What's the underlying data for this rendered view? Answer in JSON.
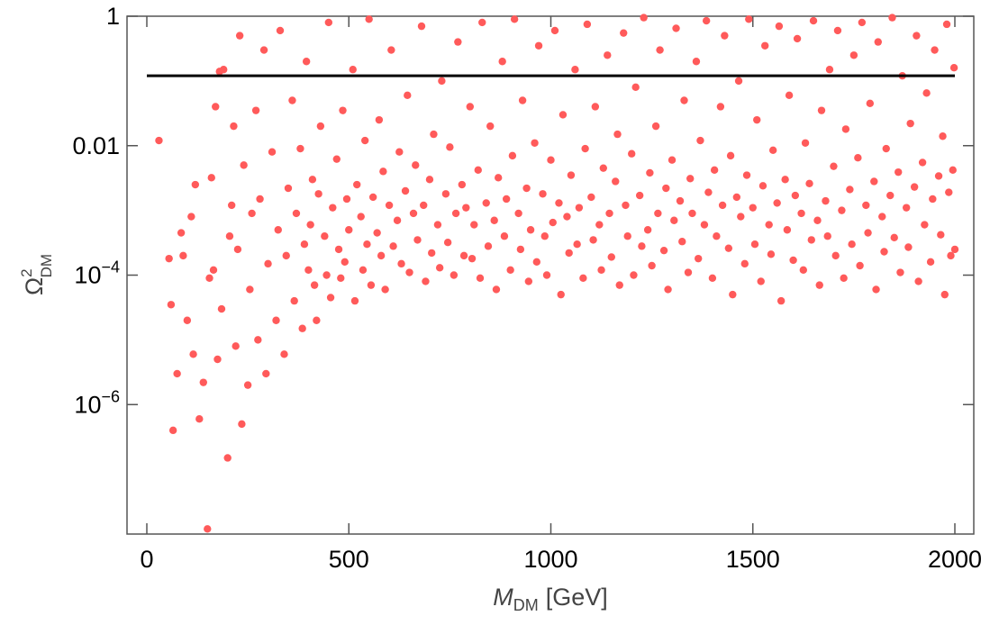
{
  "chart_data": {
    "type": "scatter",
    "xlabel": {
      "symbol": "M",
      "subscript": "DM",
      "unit": "[GeV]"
    },
    "ylabel": {
      "symbol": "Ω",
      "superscript": "2",
      "subscript": "DM"
    },
    "xlim": [
      0,
      2000
    ],
    "ylim": [
      1e-08,
      1
    ],
    "y_scale": "log",
    "x_ticks": [
      {
        "value": 0,
        "label": "0"
      },
      {
        "value": 500,
        "label": "500"
      },
      {
        "value": 1000,
        "label": "1000"
      },
      {
        "value": 1500,
        "label": "1500"
      },
      {
        "value": 2000,
        "label": "2000"
      }
    ],
    "y_ticks": [
      {
        "value": 1,
        "label": "1",
        "exp": ""
      },
      {
        "value": 0.01,
        "label": "0.01",
        "exp": ""
      },
      {
        "value": 0.0001,
        "label": "10",
        "exp": "−4"
      },
      {
        "value": 1e-06,
        "label": "10",
        "exp": "−6"
      }
    ],
    "reference_line": {
      "y": 0.12,
      "x": [
        0,
        2000
      ],
      "color": "#000000"
    },
    "marker_color": "#ff5a5a",
    "series": [
      {
        "points": [
          [
            30,
            0.012
          ],
          [
            55,
            0.00018
          ],
          [
            60,
            3.5e-05
          ],
          [
            65,
            4e-07
          ],
          [
            75,
            3e-06
          ],
          [
            85,
            0.00045
          ],
          [
            90,
            0.0002
          ],
          [
            100,
            2e-05
          ],
          [
            110,
            0.0008
          ],
          [
            115,
            6e-06
          ],
          [
            120,
            0.0025
          ],
          [
            130,
            6e-07
          ],
          [
            140,
            2.2e-06
          ],
          [
            150,
            1.2e-08
          ],
          [
            155,
            9e-05
          ],
          [
            160,
            0.0032
          ],
          [
            165,
            0.00012
          ],
          [
            170,
            0.04
          ],
          [
            175,
            5e-06
          ],
          [
            180,
            0.14
          ],
          [
            185,
            3e-05
          ],
          [
            190,
            0.15
          ],
          [
            200,
            1.5e-07
          ],
          [
            205,
            0.0004
          ],
          [
            210,
            0.0012
          ],
          [
            215,
            0.02
          ],
          [
            220,
            8e-06
          ],
          [
            225,
            0.00025
          ],
          [
            230,
            0.5
          ],
          [
            235,
            5e-07
          ],
          [
            240,
            0.005
          ],
          [
            250,
            2e-06
          ],
          [
            255,
            6e-05
          ],
          [
            260,
            0.0009
          ],
          [
            270,
            0.035
          ],
          [
            275,
            1e-05
          ],
          [
            280,
            0.0015
          ],
          [
            290,
            0.3
          ],
          [
            295,
            3e-06
          ],
          [
            300,
            0.00015
          ],
          [
            310,
            0.008
          ],
          [
            320,
            2e-05
          ],
          [
            325,
            0.0005
          ],
          [
            330,
            0.6
          ],
          [
            340,
            6e-06
          ],
          [
            345,
            0.0002
          ],
          [
            350,
            0.0022
          ],
          [
            360,
            0.05
          ],
          [
            365,
            4e-05
          ],
          [
            370,
            0.0009
          ],
          [
            380,
            0.009
          ],
          [
            385,
            1.5e-05
          ],
          [
            390,
            0.0003
          ],
          [
            395,
            0.2
          ],
          [
            400,
            0.00012
          ],
          [
            405,
            0.0006
          ],
          [
            410,
            0.003
          ],
          [
            415,
            7e-05
          ],
          [
            420,
            2e-05
          ],
          [
            425,
            0.0018
          ],
          [
            430,
            0.02
          ],
          [
            440,
            0.0004
          ],
          [
            445,
            0.0001
          ],
          [
            450,
            0.8
          ],
          [
            455,
            4.5e-05
          ],
          [
            460,
            0.0011
          ],
          [
            470,
            0.0062
          ],
          [
            475,
            0.00025
          ],
          [
            480,
            9e-05
          ],
          [
            485,
            0.035
          ],
          [
            490,
            0.00016
          ],
          [
            495,
            0.0015
          ],
          [
            500,
            0.0005
          ],
          [
            510,
            0.15
          ],
          [
            515,
            4e-05
          ],
          [
            520,
            0.0025
          ],
          [
            530,
            0.0008
          ],
          [
            535,
            0.00012
          ],
          [
            540,
            0.012
          ],
          [
            545,
            0.0003
          ],
          [
            550,
            0.9
          ],
          [
            555,
            7e-05
          ],
          [
            560,
            0.0016
          ],
          [
            570,
            0.00045
          ],
          [
            575,
            0.025
          ],
          [
            580,
            0.0002
          ],
          [
            585,
            0.004
          ],
          [
            590,
            6e-05
          ],
          [
            600,
            0.0012
          ],
          [
            605,
            0.3
          ],
          [
            610,
            0.00028
          ],
          [
            620,
            0.0007
          ],
          [
            625,
            0.008
          ],
          [
            630,
            0.00015
          ],
          [
            640,
            0.002
          ],
          [
            645,
            0.06
          ],
          [
            650,
            0.00011
          ],
          [
            660,
            0.0009
          ],
          [
            665,
            0.005
          ],
          [
            670,
            0.00035
          ],
          [
            680,
            0.7
          ],
          [
            685,
            0.0012
          ],
          [
            690,
            8e-05
          ],
          [
            700,
            0.003
          ],
          [
            705,
            0.00022
          ],
          [
            710,
            0.015
          ],
          [
            720,
            0.0006
          ],
          [
            725,
            0.00013
          ],
          [
            730,
            0.1
          ],
          [
            740,
            0.0018
          ],
          [
            745,
            0.00032
          ],
          [
            750,
            0.0095
          ],
          [
            760,
            0.0001
          ],
          [
            765,
            0.0009
          ],
          [
            770,
            0.4
          ],
          [
            780,
            0.0025
          ],
          [
            785,
            0.0002
          ],
          [
            790,
            0.0011
          ],
          [
            800,
            0.04
          ],
          [
            805,
            0.00018
          ],
          [
            810,
            0.0006
          ],
          [
            820,
            0.0042
          ],
          [
            825,
            9e-05
          ],
          [
            830,
            0.8
          ],
          [
            840,
            0.0013
          ],
          [
            845,
            0.00028
          ],
          [
            850,
            0.02
          ],
          [
            860,
            0.0007
          ],
          [
            865,
            6e-05
          ],
          [
            870,
            0.0032
          ],
          [
            880,
            0.2
          ],
          [
            885,
            0.0004
          ],
          [
            890,
            0.0015
          ],
          [
            900,
            0.00012
          ],
          [
            905,
            0.007
          ],
          [
            910,
            0.9
          ],
          [
            920,
            0.0009
          ],
          [
            925,
            0.00025
          ],
          [
            930,
            0.05
          ],
          [
            940,
            0.0022
          ],
          [
            945,
            8e-05
          ],
          [
            950,
            0.0005
          ],
          [
            960,
            0.011
          ],
          [
            965,
            0.00016
          ],
          [
            970,
            0.35
          ],
          [
            980,
            0.0018
          ],
          [
            985,
            0.0004
          ],
          [
            990,
            0.0001
          ],
          [
            1000,
            0.006
          ],
          [
            1005,
            0.00065
          ],
          [
            1010,
            0.6
          ],
          [
            1020,
            0.0013
          ],
          [
            1025,
            5e-05
          ],
          [
            1030,
            0.03
          ],
          [
            1040,
            0.0008
          ],
          [
            1045,
            0.00022
          ],
          [
            1050,
            0.0035
          ],
          [
            1060,
            0.15
          ],
          [
            1065,
            0.0003
          ],
          [
            1070,
            0.0011
          ],
          [
            1080,
            9e-05
          ],
          [
            1085,
            0.009
          ],
          [
            1090,
            0.75
          ],
          [
            1100,
            0.0016
          ],
          [
            1105,
            0.00035
          ],
          [
            1110,
            0.04
          ],
          [
            1120,
            0.0006
          ],
          [
            1125,
            0.00012
          ],
          [
            1130,
            0.0045
          ],
          [
            1140,
            0.25
          ],
          [
            1145,
            0.0009
          ],
          [
            1150,
            0.00019
          ],
          [
            1160,
            0.0028
          ],
          [
            1165,
            0.015
          ],
          [
            1170,
            7e-05
          ],
          [
            1180,
            0.55
          ],
          [
            1185,
            0.0012
          ],
          [
            1190,
            0.0004
          ],
          [
            1200,
            0.0075
          ],
          [
            1205,
            0.0001
          ],
          [
            1210,
            0.08
          ],
          [
            1220,
            0.0017
          ],
          [
            1225,
            0.00028
          ],
          [
            1230,
            0.95
          ],
          [
            1240,
            0.0005
          ],
          [
            1245,
            0.0038
          ],
          [
            1250,
            0.00014
          ],
          [
            1260,
            0.02
          ],
          [
            1265,
            0.0009
          ],
          [
            1270,
            0.3
          ],
          [
            1280,
            0.00024
          ],
          [
            1285,
            0.0022
          ],
          [
            1290,
            6e-05
          ],
          [
            1300,
            0.006
          ],
          [
            1305,
            0.0007
          ],
          [
            1310,
            0.65
          ],
          [
            1320,
            0.0014
          ],
          [
            1325,
            0.00033
          ],
          [
            1330,
            0.05
          ],
          [
            1340,
            0.00011
          ],
          [
            1345,
            0.0031
          ],
          [
            1350,
            0.0009
          ],
          [
            1360,
            0.2
          ],
          [
            1365,
            0.00018
          ],
          [
            1370,
            0.012
          ],
          [
            1380,
            0.0006
          ],
          [
            1385,
            0.85
          ],
          [
            1390,
            0.0019
          ],
          [
            1400,
            9e-05
          ],
          [
            1405,
            0.0042
          ],
          [
            1410,
            0.0004
          ],
          [
            1420,
            0.04
          ],
          [
            1425,
            0.0012
          ],
          [
            1430,
            0.5
          ],
          [
            1440,
            0.00026
          ],
          [
            1445,
            0.007
          ],
          [
            1450,
            5e-05
          ],
          [
            1460,
            0.0016
          ],
          [
            1465,
            0.1
          ],
          [
            1470,
            0.0008
          ],
          [
            1480,
            0.00015
          ],
          [
            1485,
            0.0035
          ],
          [
            1490,
            0.9
          ],
          [
            1500,
            0.0011
          ],
          [
            1505,
            0.0003
          ],
          [
            1510,
            0.025
          ],
          [
            1520,
            8e-05
          ],
          [
            1525,
            0.0024
          ],
          [
            1530,
            0.35
          ],
          [
            1540,
            0.0006
          ],
          [
            1545,
            0.00021
          ],
          [
            1550,
            0.0085
          ],
          [
            1560,
            0.0013
          ],
          [
            1565,
            0.7
          ],
          [
            1570,
            4e-05
          ],
          [
            1580,
            0.003
          ],
          [
            1585,
            0.0005
          ],
          [
            1590,
            0.06
          ],
          [
            1600,
            0.00017
          ],
          [
            1605,
            0.0017
          ],
          [
            1610,
            0.45
          ],
          [
            1620,
            0.0009
          ],
          [
            1625,
            0.00012
          ],
          [
            1630,
            0.011
          ],
          [
            1640,
            0.0026
          ],
          [
            1645,
            0.00035
          ],
          [
            1650,
            0.85
          ],
          [
            1660,
            0.0007
          ],
          [
            1665,
            7e-05
          ],
          [
            1670,
            0.035
          ],
          [
            1680,
            0.0014
          ],
          [
            1685,
            0.0004
          ],
          [
            1690,
            0.15
          ],
          [
            1700,
            0.0048
          ],
          [
            1705,
            0.0002
          ],
          [
            1710,
            0.6
          ],
          [
            1720,
            0.001
          ],
          [
            1725,
            9e-05
          ],
          [
            1730,
            0.018
          ],
          [
            1740,
            0.0021
          ],
          [
            1745,
            0.0003
          ],
          [
            1750,
            0.25
          ],
          [
            1760,
            0.0065
          ],
          [
            1765,
            0.00014
          ],
          [
            1770,
            0.8
          ],
          [
            1780,
            0.0012
          ],
          [
            1785,
            0.00045
          ],
          [
            1790,
            0.045
          ],
          [
            1800,
            0.0028
          ],
          [
            1805,
            6e-05
          ],
          [
            1810,
            0.4
          ],
          [
            1820,
            0.0008
          ],
          [
            1825,
            0.00023
          ],
          [
            1830,
            0.009
          ],
          [
            1840,
            0.0017
          ],
          [
            1845,
            0.95
          ],
          [
            1850,
            0.00038
          ],
          [
            1860,
            0.0039
          ],
          [
            1865,
            0.00011
          ],
          [
            1870,
            0.12
          ],
          [
            1880,
            0.0011
          ],
          [
            1885,
            0.00027
          ],
          [
            1890,
            0.022
          ],
          [
            1900,
            0.0023
          ],
          [
            1905,
            0.5
          ],
          [
            1910,
            8e-05
          ],
          [
            1920,
            0.0055
          ],
          [
            1925,
            0.0006
          ],
          [
            1930,
            0.065
          ],
          [
            1940,
            0.00016
          ],
          [
            1945,
            0.0015
          ],
          [
            1950,
            0.3
          ],
          [
            1960,
            0.0034
          ],
          [
            1965,
            0.00042
          ],
          [
            1970,
            0.014
          ],
          [
            1975,
            5e-05
          ],
          [
            1980,
            0.75
          ],
          [
            1985,
            0.0019
          ],
          [
            1990,
            0.0002
          ],
          [
            1995,
            0.0042
          ],
          [
            1998,
            0.16
          ],
          [
            2000,
            0.00025
          ]
        ]
      }
    ]
  }
}
